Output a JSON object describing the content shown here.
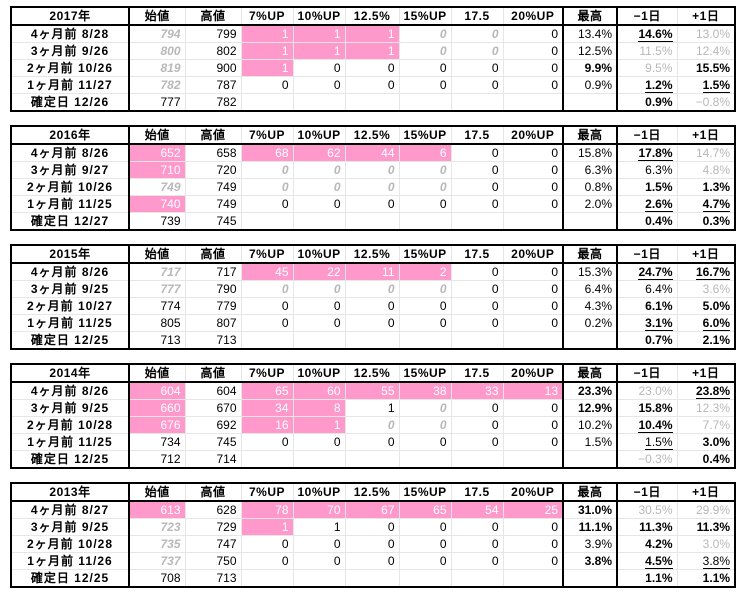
{
  "headers": [
    "始値",
    "高値",
    "7%UP",
    "10%UP",
    "12.5%",
    "15%UP",
    "17.5",
    "20%UP",
    "最高",
    "−1日",
    "+1日"
  ],
  "blocks": [
    {
      "year": "2017年",
      "rows": [
        {
          "label": "4ヶ月前  8/28",
          "cells": [
            "794",
            "799",
            "1",
            "1",
            "1",
            "0",
            "0",
            "0",
            "13.4%",
            "14.6%",
            "13.0%"
          ],
          "s": [
            "gi",
            "",
            "pk",
            "pk",
            "pk",
            "gi",
            "gi",
            "",
            "",
            "b ul",
            "gr"
          ]
        },
        {
          "label": "3ヶ月前  9/26",
          "cells": [
            "800",
            "802",
            "1",
            "1",
            "1",
            "0",
            "0",
            "0",
            "12.5%",
            "11.5%",
            "12.4%"
          ],
          "s": [
            "gi",
            "",
            "pk",
            "pk",
            "pk",
            "gi",
            "gi",
            "",
            "",
            "gr",
            "gr"
          ]
        },
        {
          "label": "2ヶ月前  10/26",
          "cells": [
            "819",
            "900",
            "1",
            "0",
            "0",
            "0",
            "0",
            "0",
            "9.9%",
            "9.5%",
            "15.5%"
          ],
          "s": [
            "gi",
            "",
            "pk",
            "",
            "",
            "",
            "",
            "",
            "b",
            "gr",
            "b"
          ]
        },
        {
          "label": "1ヶ月前  11/27",
          "cells": [
            "782",
            "787",
            "0",
            "0",
            "0",
            "0",
            "0",
            "0",
            "0.9%",
            "1.2%",
            "1.5%"
          ],
          "s": [
            "gi",
            "",
            "",
            "",
            "",
            "",
            "",
            "",
            "",
            "b ul",
            "b ul"
          ]
        },
        {
          "label": "確定日  12/26",
          "cells": [
            "777",
            "782",
            "",
            "",
            "",
            "",
            "",
            "",
            "",
            "0.9%",
            "−0.8%"
          ],
          "s": [
            "",
            "",
            "",
            "",
            "",
            "",
            "",
            "",
            "",
            "b",
            "gr"
          ]
        }
      ]
    },
    {
      "year": "2016年",
      "rows": [
        {
          "label": "4ヶ月前  8/26",
          "cells": [
            "652",
            "658",
            "68",
            "62",
            "44",
            "6",
            "0",
            "0",
            "15.8%",
            "17.8%",
            "14.7%"
          ],
          "s": [
            "pk",
            "",
            "pk",
            "pk",
            "pk",
            "pk",
            "",
            "",
            "",
            "b ul",
            "gr"
          ]
        },
        {
          "label": "3ヶ月前  9/27",
          "cells": [
            "710",
            "720",
            "0",
            "0",
            "0",
            "0",
            "0",
            "0",
            "6.3%",
            "6.3%",
            "4.8%"
          ],
          "s": [
            "pk",
            "",
            "gi",
            "gi",
            "gi",
            "gi",
            "",
            "",
            "",
            "",
            "gr"
          ]
        },
        {
          "label": "2ヶ月前  10/26",
          "cells": [
            "749",
            "749",
            "0",
            "0",
            "0",
            "0",
            "0",
            "0",
            "0.8%",
            "1.5%",
            "1.3%"
          ],
          "s": [
            "gi",
            "",
            "gi",
            "gi",
            "gi",
            "gi",
            "",
            "",
            "",
            "b",
            "b"
          ]
        },
        {
          "label": "1ヶ月前  11/25",
          "cells": [
            "740",
            "749",
            "0",
            "0",
            "0",
            "0",
            "0",
            "0",
            "2.0%",
            "2.6%",
            "4.7%"
          ],
          "s": [
            "pk",
            "",
            "",
            "",
            "",
            "",
            "",
            "",
            "",
            "b ul",
            "b ul"
          ]
        },
        {
          "label": "確定日  12/27",
          "cells": [
            "739",
            "745",
            "",
            "",
            "",
            "",
            "",
            "",
            "",
            "0.4%",
            "0.3%"
          ],
          "s": [
            "",
            "",
            "",
            "",
            "",
            "",
            "",
            "",
            "",
            "b",
            "b"
          ]
        }
      ]
    },
    {
      "year": "2015年",
      "rows": [
        {
          "label": "4ヶ月前  8/26",
          "cells": [
            "717",
            "717",
            "45",
            "22",
            "11",
            "2",
            "0",
            "0",
            "15.3%",
            "24.7%",
            "16.7%"
          ],
          "s": [
            "gi",
            "",
            "pk",
            "pk",
            "pk",
            "pk",
            "",
            "",
            "",
            "b ul",
            "b ul"
          ]
        },
        {
          "label": "3ヶ月前  9/25",
          "cells": [
            "777",
            "790",
            "0",
            "0",
            "0",
            "0",
            "0",
            "0",
            "6.4%",
            "6.4%",
            "3.6%"
          ],
          "s": [
            "gi",
            "",
            "gi",
            "gi",
            "gi",
            "gi",
            "",
            "",
            "",
            "",
            "gr"
          ]
        },
        {
          "label": "2ヶ月前  10/27",
          "cells": [
            "774",
            "779",
            "0",
            "0",
            "0",
            "0",
            "0",
            "0",
            "4.3%",
            "6.1%",
            "5.0%"
          ],
          "s": [
            "",
            "",
            "",
            "",
            "",
            "",
            "",
            "",
            "",
            "b",
            "b"
          ]
        },
        {
          "label": "1ヶ月前  11/25",
          "cells": [
            "805",
            "807",
            "0",
            "0",
            "0",
            "0",
            "0",
            "0",
            "0.2%",
            "3.1%",
            "6.0%"
          ],
          "s": [
            "",
            "",
            "",
            "",
            "",
            "",
            "",
            "",
            "",
            "b ul",
            "b ul"
          ]
        },
        {
          "label": "確定日  12/25",
          "cells": [
            "713",
            "713",
            "",
            "",
            "",
            "",
            "",
            "",
            "",
            "0.7%",
            "2.1%"
          ],
          "s": [
            "",
            "",
            "",
            "",
            "",
            "",
            "",
            "",
            "",
            "b",
            "b"
          ]
        }
      ]
    },
    {
      "year": "2014年",
      "rows": [
        {
          "label": "4ヶ月前  8/26",
          "cells": [
            "604",
            "604",
            "65",
            "60",
            "55",
            "38",
            "33",
            "13",
            "23.3%",
            "23.0%",
            "23.8%"
          ],
          "s": [
            "pk",
            "",
            "pk",
            "pk",
            "pk",
            "pk",
            "pk",
            "pk",
            "b",
            "gr",
            "b ul"
          ]
        },
        {
          "label": "3ヶ月前  9/25",
          "cells": [
            "660",
            "670",
            "34",
            "8",
            "1",
            "0",
            "0",
            "0",
            "12.9%",
            "15.8%",
            "12.3%"
          ],
          "s": [
            "pk",
            "",
            "pk",
            "pk",
            "",
            "gi",
            "",
            "",
            "b",
            "b",
            "gr"
          ]
        },
        {
          "label": "2ヶ月前  10/28",
          "cells": [
            "676",
            "692",
            "16",
            "1",
            "0",
            "0",
            "0",
            "0",
            "10.2%",
            "10.4%",
            "7.7%"
          ],
          "s": [
            "pk",
            "",
            "pk",
            "pk",
            "gi",
            "gi",
            "",
            "",
            "",
            "b ul",
            "gr"
          ]
        },
        {
          "label": "1ヶ月前  11/25",
          "cells": [
            "734",
            "745",
            "0",
            "0",
            "0",
            "0",
            "0",
            "0",
            "1.5%",
            "1.5%",
            "3.0%"
          ],
          "s": [
            "",
            "",
            "",
            "",
            "",
            "",
            "",
            "",
            "",
            "ul",
            "b"
          ]
        },
        {
          "label": "確定日  12/25",
          "cells": [
            "712",
            "714",
            "",
            "",
            "",
            "",
            "",
            "",
            "",
            "−0.3%",
            "0.4%"
          ],
          "s": [
            "",
            "",
            "",
            "",
            "",
            "",
            "",
            "",
            "",
            "gr",
            "b"
          ]
        }
      ]
    },
    {
      "year": "2013年",
      "rows": [
        {
          "label": "4ヶ月前  8/27",
          "cells": [
            "613",
            "628",
            "78",
            "70",
            "67",
            "65",
            "54",
            "25",
            "31.0%",
            "30.5%",
            "29.9%"
          ],
          "s": [
            "pk",
            "",
            "pk",
            "pk",
            "pk",
            "pk",
            "pk",
            "pk",
            "b",
            "gr",
            "gr"
          ]
        },
        {
          "label": "3ヶ月前  9/25",
          "cells": [
            "723",
            "729",
            "1",
            "1",
            "0",
            "0",
            "0",
            "0",
            "11.1%",
            "11.3%",
            "11.3%"
          ],
          "s": [
            "gi",
            "",
            "pk",
            "",
            "",
            "",
            "",
            "",
            "b",
            "b",
            "b"
          ]
        },
        {
          "label": "2ヶ月前  10/28",
          "cells": [
            "735",
            "747",
            "0",
            "0",
            "0",
            "0",
            "0",
            "0",
            "3.9%",
            "4.2%",
            "3.0%"
          ],
          "s": [
            "gi",
            "",
            "",
            "",
            "",
            "",
            "",
            "",
            "",
            "b",
            "gr"
          ]
        },
        {
          "label": "1ヶ月前  11/26",
          "cells": [
            "737",
            "750",
            "0",
            "0",
            "0",
            "0",
            "0",
            "0",
            "3.8%",
            "4.5%",
            "3.8%"
          ],
          "s": [
            "gi",
            "",
            "",
            "",
            "",
            "",
            "",
            "",
            "b",
            "b ul",
            "ul"
          ]
        },
        {
          "label": "確定日  12/25",
          "cells": [
            "708",
            "713",
            "",
            "",
            "",
            "",
            "",
            "",
            "",
            "1.1%",
            "1.1%"
          ],
          "s": [
            "",
            "",
            "",
            "",
            "",
            "",
            "",
            "",
            "",
            "b",
            "b"
          ]
        }
      ]
    }
  ]
}
